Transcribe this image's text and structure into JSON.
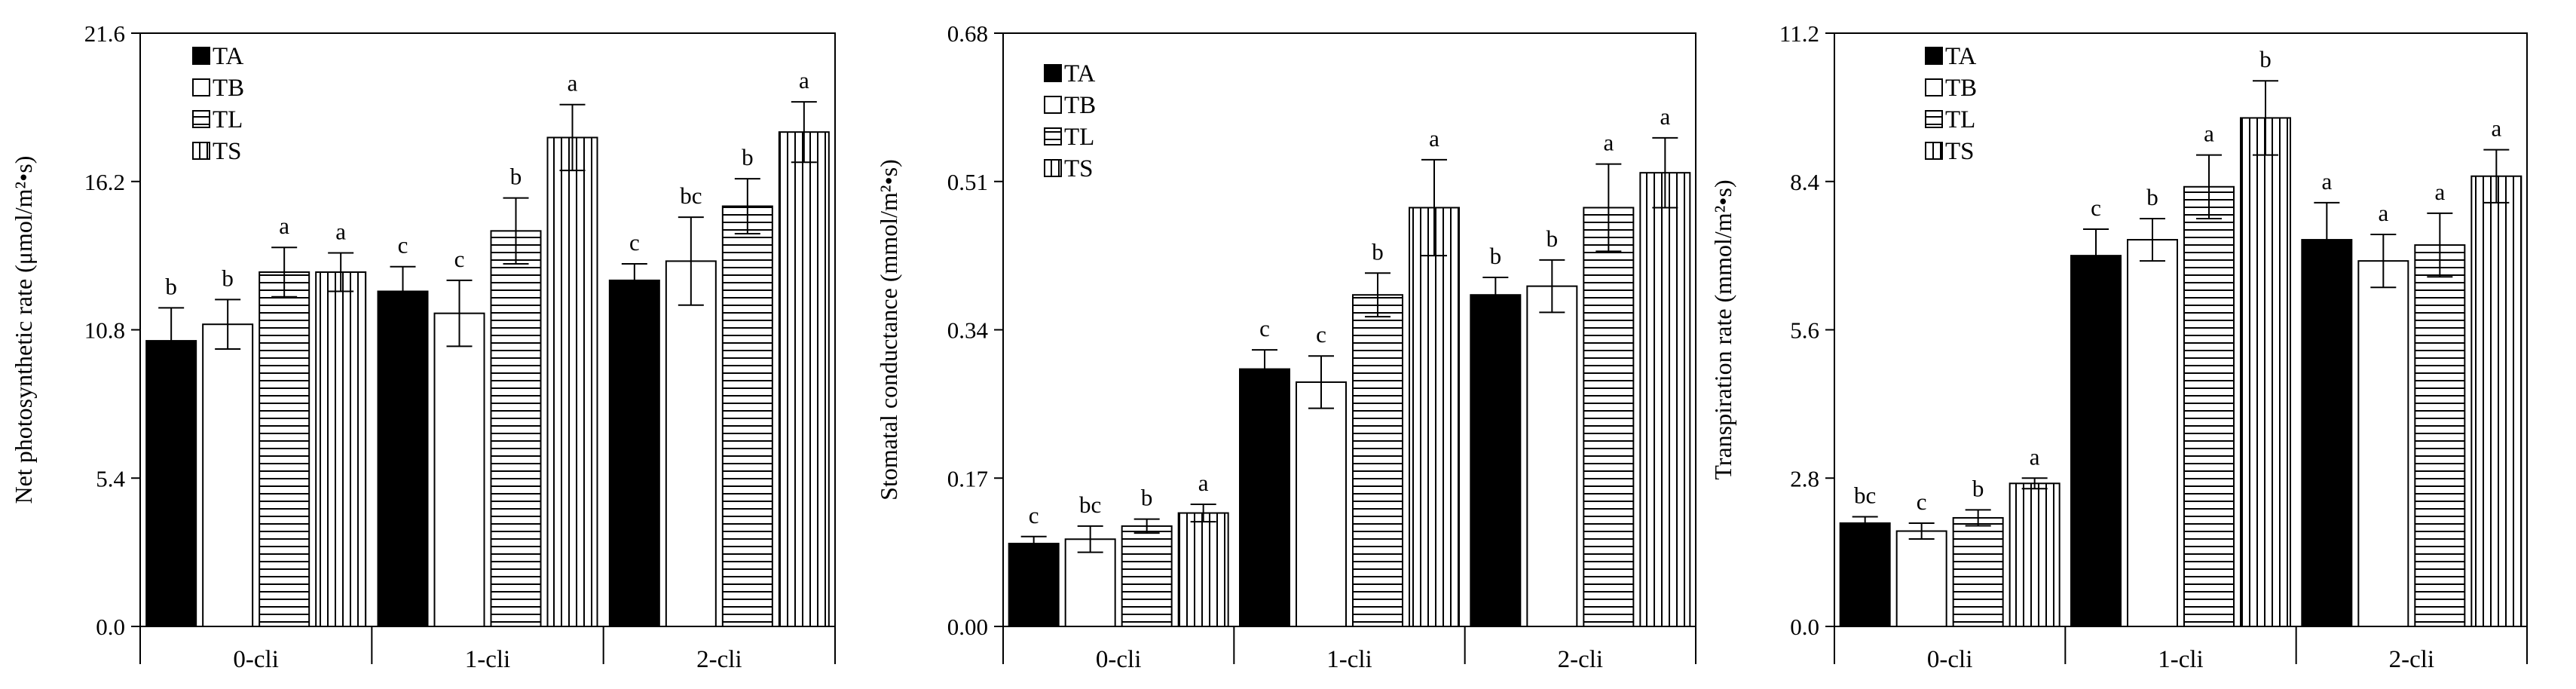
{
  "figure": {
    "panel_count": 3
  },
  "colors": {
    "ink": "#000000",
    "paper": "#ffffff"
  },
  "chart_data": [
    {
      "type": "bar",
      "title": "",
      "xlabel": "",
      "ylabel": "Net photosynthetic rate (μmol/m²•s)",
      "categories": [
        "0-cli",
        "1-cli",
        "2-cli"
      ],
      "ylim": [
        0,
        21.6
      ],
      "yticks": [
        "0.0",
        "5.4",
        "10.8",
        "16.2",
        "21.6"
      ],
      "legend": [
        "TA",
        "TB",
        "TL",
        "TS"
      ],
      "series": [
        {
          "name": "TA",
          "values": [
            10.4,
            12.2,
            12.6
          ],
          "errors": [
            1.2,
            0.9,
            0.6
          ],
          "letters": [
            "b",
            "c",
            "c"
          ]
        },
        {
          "name": "TB",
          "values": [
            11.0,
            11.4,
            13.3
          ],
          "errors": [
            0.9,
            1.2,
            1.6
          ],
          "letters": [
            "b",
            "c",
            "bc"
          ]
        },
        {
          "name": "TL",
          "values": [
            12.9,
            14.4,
            15.3
          ],
          "errors": [
            0.9,
            1.2,
            1.0
          ],
          "letters": [
            "a",
            "b",
            "b"
          ]
        },
        {
          "name": "TS",
          "values": [
            12.9,
            17.8,
            18.0
          ],
          "errors": [
            0.7,
            1.2,
            1.1
          ],
          "letters": [
            "a",
            "a",
            "a"
          ]
        }
      ]
    },
    {
      "type": "bar",
      "title": "",
      "xlabel": "",
      "ylabel": "Stomatal conductance (mmol/m²•s)",
      "categories": [
        "0-cli",
        "1-cli",
        "2-cli"
      ],
      "ylim": [
        0,
        0.68
      ],
      "yticks": [
        "0.00",
        "0.17",
        "0.34",
        "0.51",
        "0.68"
      ],
      "legend": [
        "TA",
        "TB",
        "TL",
        "TS"
      ],
      "series": [
        {
          "name": "TA",
          "values": [
            0.095,
            0.295,
            0.38
          ],
          "errors": [
            0.008,
            0.022,
            0.02
          ],
          "letters": [
            "c",
            "c",
            "b"
          ]
        },
        {
          "name": "TB",
          "values": [
            0.1,
            0.28,
            0.39
          ],
          "errors": [
            0.015,
            0.03,
            0.03
          ],
          "letters": [
            "bc",
            "c",
            "b"
          ]
        },
        {
          "name": "TL",
          "values": [
            0.115,
            0.38,
            0.48
          ],
          "errors": [
            0.008,
            0.025,
            0.05
          ],
          "letters": [
            "b",
            "b",
            "a"
          ]
        },
        {
          "name": "TS",
          "values": [
            0.13,
            0.48,
            0.52
          ],
          "errors": [
            0.01,
            0.055,
            0.04
          ],
          "letters": [
            "a",
            "a",
            "a"
          ]
        }
      ]
    },
    {
      "type": "bar",
      "title": "",
      "xlabel": "",
      "ylabel": "Transpiration rate (mmol/m²•s)",
      "categories": [
        "0-cli",
        "1-cli",
        "2-cli"
      ],
      "ylim": [
        0,
        11.2
      ],
      "yticks": [
        "0.0",
        "2.8",
        "5.6",
        "8.4",
        "11.2"
      ],
      "legend": [
        "TA",
        "TB",
        "TL",
        "TS"
      ],
      "series": [
        {
          "name": "TA",
          "values": [
            1.95,
            7.0,
            7.3
          ],
          "errors": [
            0.12,
            0.5,
            0.7
          ],
          "letters": [
            "bc",
            "c",
            "a"
          ]
        },
        {
          "name": "TB",
          "values": [
            1.8,
            7.3,
            6.9
          ],
          "errors": [
            0.15,
            0.4,
            0.5
          ],
          "letters": [
            "c",
            "b",
            "a"
          ]
        },
        {
          "name": "TL",
          "values": [
            2.05,
            8.3,
            7.2
          ],
          "errors": [
            0.15,
            0.6,
            0.6
          ],
          "letters": [
            "b",
            "a",
            "a"
          ]
        },
        {
          "name": "TS",
          "values": [
            2.7,
            9.6,
            8.5
          ],
          "errors": [
            0.1,
            0.7,
            0.5
          ],
          "letters": [
            "a",
            "b",
            "a"
          ]
        }
      ]
    }
  ]
}
